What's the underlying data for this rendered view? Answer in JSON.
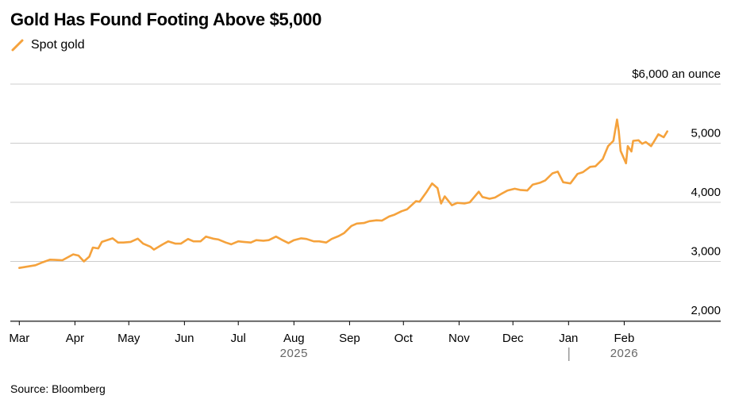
{
  "title": "Gold Has Found Footing Above $5,000",
  "source": "Source: Bloomberg",
  "legend": {
    "label": "Spot gold",
    "icon": "line-swatch-icon"
  },
  "colors": {
    "line": "#F5A23C",
    "grid": "#CCCCCC",
    "axis": "#000000",
    "year_text": "#666666"
  },
  "chart_data": {
    "type": "line",
    "title": "Gold Has Found Footing Above $5,000",
    "series": [
      {
        "name": "Spot gold",
        "color": "#F5A23C",
        "x": [
          "2025-03-01",
          "2025-03-05",
          "2025-03-10",
          "2025-03-14",
          "2025-03-18",
          "2025-03-21",
          "2025-03-25",
          "2025-03-31",
          "2025-04-03",
          "2025-04-06",
          "2025-04-09",
          "2025-04-11",
          "2025-04-14",
          "2025-04-16",
          "2025-04-22",
          "2025-04-25",
          "2025-04-28",
          "2025-05-02",
          "2025-05-06",
          "2025-05-09",
          "2025-05-13",
          "2025-05-15",
          "2025-05-20",
          "2025-05-23",
          "2025-05-27",
          "2025-05-30",
          "2025-06-03",
          "2025-06-06",
          "2025-06-10",
          "2025-06-13",
          "2025-06-17",
          "2025-06-20",
          "2025-06-24",
          "2025-06-27",
          "2025-07-01",
          "2025-07-04",
          "2025-07-08",
          "2025-07-11",
          "2025-07-15",
          "2025-07-18",
          "2025-07-22",
          "2025-07-25",
          "2025-07-29",
          "2025-08-01",
          "2025-08-05",
          "2025-08-08",
          "2025-08-12",
          "2025-08-15",
          "2025-08-19",
          "2025-08-22",
          "2025-08-26",
          "2025-08-29",
          "2025-09-02",
          "2025-09-05",
          "2025-09-09",
          "2025-09-12",
          "2025-09-16",
          "2025-09-19",
          "2025-09-23",
          "2025-09-26",
          "2025-09-30",
          "2025-10-03",
          "2025-10-08",
          "2025-10-10",
          "2025-10-14",
          "2025-10-17",
          "2025-10-20",
          "2025-10-22",
          "2025-10-24",
          "2025-10-28",
          "2025-10-31",
          "2025-11-04",
          "2025-11-07",
          "2025-11-12",
          "2025-11-14",
          "2025-11-18",
          "2025-11-21",
          "2025-11-25",
          "2025-11-28",
          "2025-12-02",
          "2025-12-05",
          "2025-12-09",
          "2025-12-12",
          "2025-12-16",
          "2025-12-19",
          "2025-12-23",
          "2025-12-26",
          "2025-12-29",
          "2026-01-02",
          "2026-01-06",
          "2026-01-09",
          "2026-01-13",
          "2026-01-16",
          "2026-01-20",
          "2026-01-23",
          "2026-01-26",
          "2026-01-28",
          "2026-01-29",
          "2026-01-30",
          "2026-02-02",
          "2026-02-03",
          "2026-02-05",
          "2026-02-06",
          "2026-02-09",
          "2026-02-11",
          "2026-02-13",
          "2026-02-16",
          "2026-02-18",
          "2026-02-20",
          "2026-02-23",
          "2026-02-25"
        ],
        "values": [
          2890,
          2910,
          2935,
          2985,
          3030,
          3025,
          3020,
          3120,
          3100,
          3000,
          3080,
          3235,
          3220,
          3330,
          3390,
          3320,
          3320,
          3330,
          3385,
          3300,
          3250,
          3200,
          3290,
          3340,
          3300,
          3300,
          3380,
          3340,
          3340,
          3420,
          3385,
          3370,
          3320,
          3290,
          3340,
          3330,
          3320,
          3360,
          3350,
          3360,
          3420,
          3370,
          3310,
          3360,
          3390,
          3380,
          3340,
          3340,
          3320,
          3380,
          3430,
          3480,
          3600,
          3640,
          3650,
          3680,
          3695,
          3690,
          3760,
          3790,
          3850,
          3880,
          4020,
          4010,
          4180,
          4320,
          4240,
          3980,
          4100,
          3950,
          3990,
          3980,
          4000,
          4180,
          4090,
          4060,
          4080,
          4150,
          4200,
          4230,
          4210,
          4200,
          4300,
          4330,
          4370,
          4490,
          4520,
          4340,
          4320,
          4480,
          4510,
          4600,
          4610,
          4730,
          4950,
          5040,
          5400,
          5200,
          4870,
          4660,
          4950,
          4860,
          5040,
          5050,
          4990,
          5020,
          4950,
          5050,
          5150,
          5100,
          5200
        ]
      }
    ],
    "y_axis": {
      "ticks": [
        2000,
        3000,
        4000,
        5000,
        6000
      ],
      "tick_labels": [
        "2,000",
        "3,000",
        "4,000",
        "5,000",
        "$6,000 an ounce"
      ],
      "ylim": [
        2000,
        6000
      ]
    },
    "x_axis": {
      "xlim": [
        "2025-02-24",
        "2026-03-02"
      ],
      "month_ticks": [
        {
          "date": "2025-03-01",
          "label": "Mar"
        },
        {
          "date": "2025-04-01",
          "label": "Apr"
        },
        {
          "date": "2025-05-01",
          "label": "May"
        },
        {
          "date": "2025-06-01",
          "label": "Jun"
        },
        {
          "date": "2025-07-01",
          "label": "Jul"
        },
        {
          "date": "2025-08-01",
          "label": "Aug"
        },
        {
          "date": "2025-09-01",
          "label": "Sep"
        },
        {
          "date": "2025-10-01",
          "label": "Oct"
        },
        {
          "date": "2025-11-01",
          "label": "Nov"
        },
        {
          "date": "2025-12-01",
          "label": "Dec"
        },
        {
          "date": "2026-01-01",
          "label": "Jan"
        },
        {
          "date": "2026-02-01",
          "label": "Feb"
        }
      ],
      "year_labels": [
        {
          "label": "2025",
          "date": "2025-08-01"
        },
        {
          "label": "2026",
          "date": "2026-02-01"
        }
      ],
      "year_separator_date": "2026-01-01"
    },
    "grid": true,
    "legend_position": "top-left"
  }
}
